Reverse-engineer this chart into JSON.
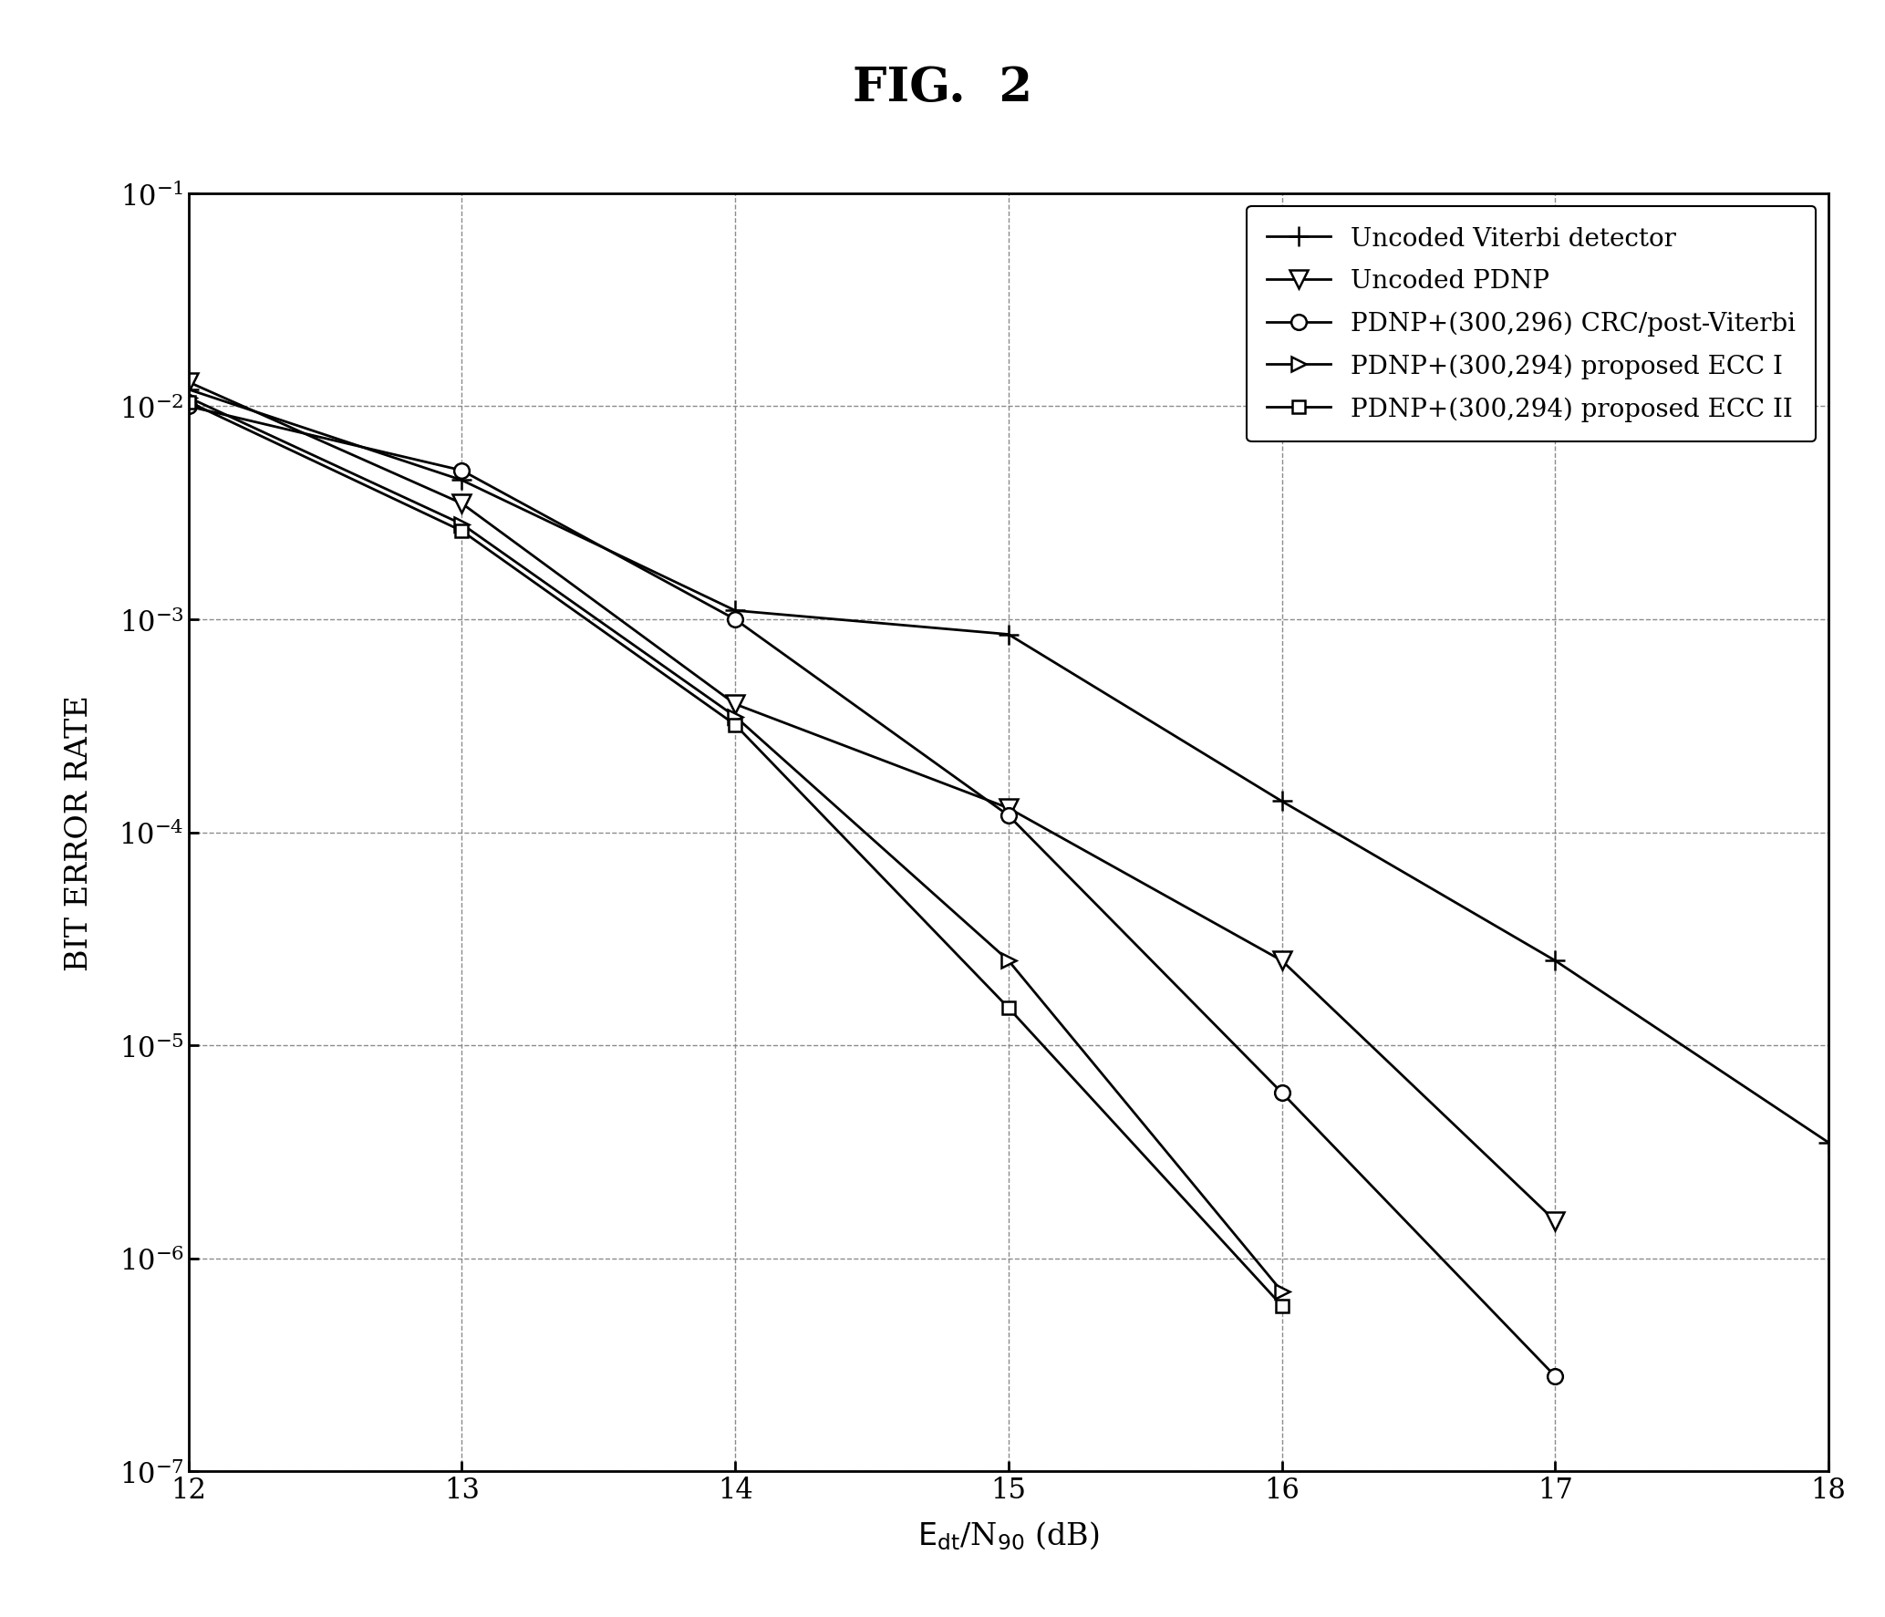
{
  "title": "FIG.  2",
  "xlabel_text": "E",
  "ylabel": "BIT ERROR RATE",
  "xlim": [
    12,
    18
  ],
  "ylim_log": [
    -7,
    -1
  ],
  "x_ticks": [
    12,
    13,
    14,
    15,
    16,
    17,
    18
  ],
  "series": [
    {
      "label": "Uncoded Viterbi detector",
      "marker": "plus",
      "x": [
        12,
        13,
        14,
        15,
        16,
        17,
        18
      ],
      "y": [
        0.012,
        0.0045,
        0.0011,
        0.00085,
        0.00014,
        2.5e-05,
        3.5e-06
      ]
    },
    {
      "label": "Uncoded PDNP",
      "marker": "tri_down",
      "x": [
        12,
        13,
        14,
        15,
        16,
        17
      ],
      "y": [
        0.013,
        0.0035,
        0.0004,
        0.00013,
        2.5e-05,
        1.5e-06
      ]
    },
    {
      "label": "PDNP+(300,296) CRC/post-Viterbi",
      "marker": "circle",
      "x": [
        12,
        13,
        14,
        15,
        16,
        17
      ],
      "y": [
        0.01,
        0.005,
        0.001,
        0.00012,
        6e-06,
        2.8e-07
      ]
    },
    {
      "label": "PDNP+(300,294) proposed ECC I",
      "marker": "tri_right",
      "x": [
        12,
        13,
        14,
        15,
        16
      ],
      "y": [
        0.011,
        0.0028,
        0.00035,
        2.5e-05,
        7e-07
      ]
    },
    {
      "label": "PDNP+(300,294) proposed ECC II",
      "marker": "square",
      "x": [
        12,
        13,
        14,
        15,
        16
      ],
      "y": [
        0.0105,
        0.0026,
        0.00032,
        1.5e-05,
        6e-07
      ]
    }
  ],
  "background_color": "#ffffff",
  "line_color": "#000000",
  "grid_color": "#808080",
  "font_color": "#000000",
  "title_fontsize": 38,
  "axis_label_fontsize": 24,
  "tick_fontsize": 22,
  "legend_fontsize": 20
}
